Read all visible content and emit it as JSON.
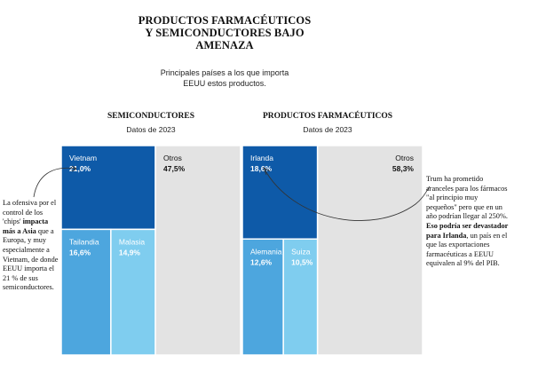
{
  "title": "PRODUCTOS FARMACÉUTICOS\nY SEMICONDUCTORES BAJO\nAMENAZA",
  "subtitle": "Principales países a los que importa EEUU estos productos.",
  "colors": {
    "dark_blue": "#0e5aa8",
    "mid_blue": "#4da6de",
    "light_blue": "#7fcdef",
    "gray": "#e3e3e3"
  },
  "annotations": {
    "left_pre": "La ofensiva por el control de los 'chips' ",
    "left_bold": "impacta más a Asia",
    "left_post": " que a Europa, y muy especialmente a Vietnam, de donde EEUU importa el 21 % de sus semiconductores.",
    "right_pre": "Trum ha prometido aranceles para los fármacos \"al principio muy pequeños\" pero que en un año podrían llegar al 250%. ",
    "right_bold": "Eso podría ser devastador para Irlanda",
    "right_post": ", un país en el que las exportaciones farmacéuticas a EEUU equivalen al 9% del PIB."
  },
  "chart_data": [
    {
      "type": "treemap",
      "title": "SEMICONDUCTORES",
      "subtitle": "Datos de 2023",
      "items": [
        {
          "name": "Vietnam",
          "label": "21,0%",
          "value": 21.0,
          "color": "#0e5aa8"
        },
        {
          "name": "Tailandia",
          "label": "16,6%",
          "value": 16.6,
          "color": "#4da6de"
        },
        {
          "name": "Malasia",
          "label": "14,9%",
          "value": 14.9,
          "color": "#7fcdef"
        },
        {
          "name": "Otros",
          "label": "47,5%",
          "value": 47.5,
          "color": "#e3e3e3"
        }
      ]
    },
    {
      "type": "treemap",
      "title": "PRODUCTOS FARMACÉUTICOS",
      "subtitle": "Datos de 2023",
      "items": [
        {
          "name": "Irlanda",
          "label": "18,6%",
          "value": 18.6,
          "color": "#0e5aa8"
        },
        {
          "name": "Alemania",
          "label": "12,6%",
          "value": 12.6,
          "color": "#4da6de"
        },
        {
          "name": "Suiza",
          "label": "10,5%",
          "value": 10.5,
          "color": "#7fcdef"
        },
        {
          "name": "Otros",
          "label": "58,3%",
          "value": 58.3,
          "color": "#e3e3e3"
        }
      ]
    }
  ]
}
